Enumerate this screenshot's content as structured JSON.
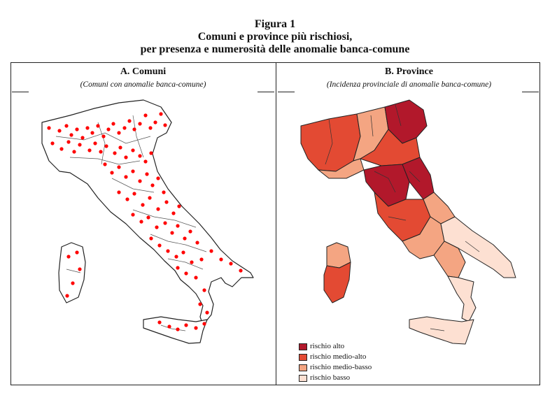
{
  "figure": {
    "title": "Figura 1",
    "subtitle_line1": "Comuni e province più rischiosi,",
    "subtitle_line2": "per presenza e numerosità delle anomalie banca-comune"
  },
  "panel_a": {
    "title": "A. Comuni",
    "subtitle": "(Comuni con anomalie banca-comune)"
  },
  "panel_b": {
    "title": "B. Province",
    "subtitle": "(Incidenza provinciale di anomalie banca-comune)"
  },
  "legend": [
    {
      "label": "rischio alto",
      "color": "#b2182b"
    },
    {
      "label": "rischio medio-alto",
      "color": "#e34a33"
    },
    {
      "label": "rischio medio-basso",
      "color": "#f4a582"
    },
    {
      "label": "rischio basso",
      "color": "#fde0d2"
    }
  ],
  "colors": {
    "dot": "#ff0000",
    "border": "#222222"
  }
}
